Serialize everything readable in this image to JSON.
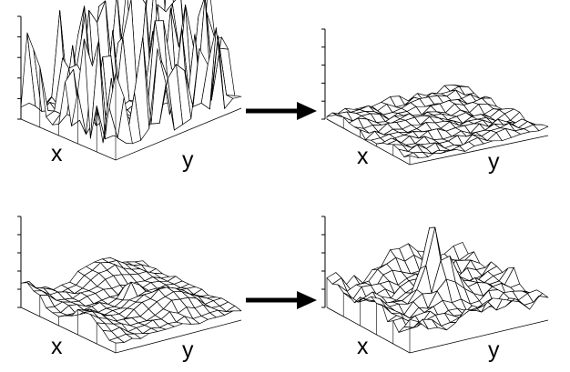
{
  "panels": [
    {
      "id": "top-left",
      "amplitude": "large",
      "pattern": "sparse-spikes",
      "x_label": "x",
      "y_label": "y"
    },
    {
      "id": "top-right",
      "amplitude": "small",
      "pattern": "flat-ripples",
      "x_label": "x",
      "y_label": "y"
    },
    {
      "id": "bottom-left",
      "amplitude": "medium",
      "pattern": "smooth-bumps",
      "x_label": "x",
      "y_label": "y"
    },
    {
      "id": "bottom-right",
      "amplitude": "medium-large",
      "pattern": "bumps-with-central-peak",
      "x_label": "x",
      "y_label": "y"
    }
  ],
  "arrows": [
    {
      "from": "top-left",
      "to": "top-right"
    },
    {
      "from": "bottom-left",
      "to": "bottom-right"
    }
  ],
  "colors": {
    "line": "#000000",
    "fill": "#ffffff",
    "background": "#ffffff"
  }
}
